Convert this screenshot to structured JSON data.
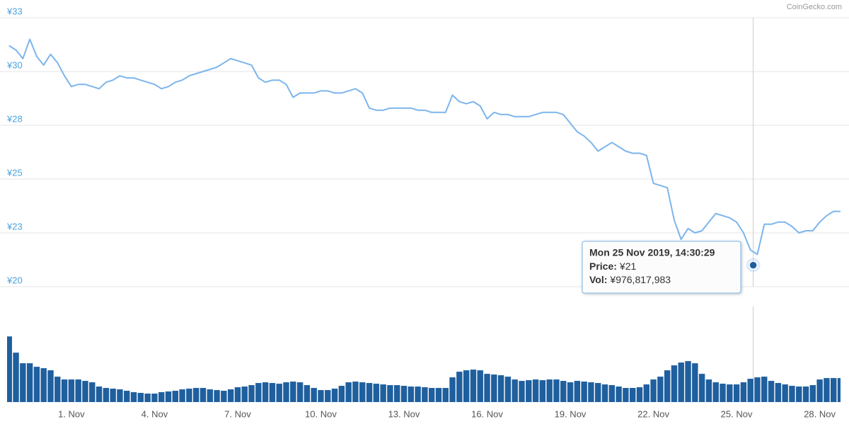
{
  "chart_data": [
    {
      "type": "line",
      "color": "#7cb5ec",
      "x": [
        -1.25,
        -1,
        -0.75,
        -0.5,
        -0.25,
        0,
        0.25,
        0.5,
        0.75,
        1,
        1.25,
        1.5,
        1.75,
        2,
        2.25,
        2.5,
        2.75,
        3,
        3.25,
        3.5,
        3.75,
        4,
        4.25,
        4.5,
        4.75,
        5,
        5.25,
        5.5,
        5.75,
        6,
        6.25,
        6.5,
        6.75,
        7,
        7.25,
        7.5,
        7.75,
        8,
        8.25,
        8.5,
        8.75,
        9,
        9.25,
        9.5,
        9.75,
        10,
        10.25,
        10.5,
        10.75,
        11,
        11.25,
        11.5,
        11.75,
        12,
        12.25,
        12.5,
        12.75,
        13,
        13.25,
        13.5,
        13.75,
        14,
        14.25,
        14.5,
        14.75,
        15,
        15.25,
        15.5,
        15.75,
        16,
        16.25,
        16.5,
        16.75,
        17,
        17.25,
        17.5,
        17.75,
        18,
        18.25,
        18.5,
        18.75,
        19,
        19.25,
        19.5,
        19.75,
        20,
        20.25,
        20.5,
        20.75,
        21,
        21.25,
        21.5,
        21.75,
        22,
        22.25,
        22.5,
        22.75,
        23,
        23.25,
        23.5,
        23.75,
        24,
        24.25,
        24.5,
        24.75,
        25,
        25.25,
        25.5,
        25.75,
        26,
        26.25,
        26.5,
        26.75,
        27,
        27.25,
        27.5,
        27.75,
        28,
        28.25,
        28.5,
        28.75
      ],
      "values": [
        31.2,
        31.0,
        30.6,
        31.5,
        30.7,
        30.3,
        30.8,
        30.4,
        29.8,
        29.3,
        29.4,
        29.4,
        29.3,
        29.2,
        29.5,
        29.6,
        29.8,
        29.7,
        29.7,
        29.6,
        29.5,
        29.4,
        29.2,
        29.3,
        29.5,
        29.6,
        29.8,
        29.9,
        30.0,
        30.1,
        30.2,
        30.4,
        30.6,
        30.5,
        30.4,
        30.3,
        29.7,
        29.5,
        29.6,
        29.6,
        29.4,
        28.8,
        29.0,
        29.0,
        29.0,
        29.1,
        29.1,
        29.0,
        29.0,
        29.1,
        29.2,
        29.0,
        28.3,
        28.2,
        28.2,
        28.3,
        28.3,
        28.3,
        28.3,
        28.2,
        28.2,
        28.1,
        28.1,
        28.1,
        28.9,
        28.6,
        28.5,
        28.6,
        28.4,
        27.8,
        28.1,
        28.0,
        28.0,
        27.9,
        27.9,
        27.9,
        28.0,
        28.1,
        28.1,
        28.1,
        28.0,
        27.6,
        27.2,
        27.0,
        26.7,
        26.3,
        26.5,
        26.7,
        26.5,
        26.3,
        26.2,
        26.2,
        26.1,
        24.8,
        24.7,
        24.6,
        23.1,
        22.2,
        22.7,
        22.5,
        22.6,
        23.0,
        23.4,
        23.3,
        23.2,
        23.0,
        22.5,
        21.7,
        21.5,
        22.9,
        22.9,
        23.0,
        23.0,
        22.8,
        22.5,
        22.6,
        22.6,
        23.0,
        23.3,
        23.5,
        23.5
      ],
      "xlim": [
        -1.32,
        28.75
      ],
      "ylim": [
        20,
        32.5
      ],
      "yticks": [
        {
          "value": 20,
          "label": "¥20"
        },
        {
          "value": 22.5,
          "label": "¥23"
        },
        {
          "value": 25,
          "label": "¥25"
        },
        {
          "value": 27.5,
          "label": "¥28"
        },
        {
          "value": 30,
          "label": "¥30"
        },
        {
          "value": 32.5,
          "label": "¥33"
        }
      ],
      "grid": true,
      "tooltip": {
        "title": "Mon 25 Nov 2019, 14:30:29",
        "x": 25.6,
        "price_label": "Price:",
        "price": {
          "value": 21,
          "label": "¥21"
        },
        "vol_label": "Vol:",
        "vol": {
          "value": 976817983,
          "label": "¥976,817,983"
        }
      }
    },
    {
      "type": "bar",
      "color": "#1f5f9e",
      "x": [
        -1.25,
        -1,
        -0.75,
        -0.5,
        -0.25,
        0,
        0.25,
        0.5,
        0.75,
        1,
        1.25,
        1.5,
        1.75,
        2,
        2.25,
        2.5,
        2.75,
        3,
        3.25,
        3.5,
        3.75,
        4,
        4.25,
        4.5,
        4.75,
        5,
        5.25,
        5.5,
        5.75,
        6,
        6.25,
        6.5,
        6.75,
        7,
        7.25,
        7.5,
        7.75,
        8,
        8.25,
        8.5,
        8.75,
        9,
        9.25,
        9.5,
        9.75,
        10,
        10.25,
        10.5,
        10.75,
        11,
        11.25,
        11.5,
        11.75,
        12,
        12.25,
        12.5,
        12.75,
        13,
        13.25,
        13.5,
        13.75,
        14,
        14.25,
        14.5,
        14.75,
        15,
        15.25,
        15.5,
        15.75,
        16,
        16.25,
        16.5,
        16.75,
        17,
        17.25,
        17.5,
        17.75,
        18,
        18.25,
        18.5,
        18.75,
        19,
        19.25,
        19.5,
        19.75,
        20,
        20.25,
        20.5,
        20.75,
        21,
        21.25,
        21.5,
        21.75,
        22,
        22.25,
        22.5,
        22.75,
        23,
        23.25,
        23.5,
        23.75,
        24,
        24.25,
        24.5,
        24.75,
        25,
        25.25,
        25.5,
        25.75,
        26,
        26.25,
        26.5,
        26.75,
        27,
        27.25,
        27.5,
        27.75,
        28,
        28.25,
        28.5,
        28.75
      ],
      "values": [
        3022500000,
        2275000000,
        1787500000,
        1787500000,
        1625000000,
        1560000000,
        1462500000,
        1170000000,
        1040000000,
        1040000000,
        1040000000,
        975000000,
        910000000,
        715000000,
        650000000,
        617500000,
        585000000,
        520000000,
        455000000,
        422500000,
        390000000,
        390000000,
        455000000,
        487500000,
        520000000,
        585000000,
        617500000,
        650000000,
        650000000,
        585000000,
        552500000,
        520000000,
        585000000,
        682500000,
        715000000,
        780000000,
        877500000,
        910000000,
        877500000,
        845000000,
        910000000,
        942500000,
        910000000,
        780000000,
        650000000,
        552500000,
        552500000,
        617500000,
        747500000,
        910000000,
        942500000,
        910000000,
        877500000,
        845000000,
        812500000,
        780000000,
        780000000,
        747500000,
        715000000,
        715000000,
        682500000,
        650000000,
        650000000,
        650000000,
        1137500000,
        1397500000,
        1462500000,
        1495000000,
        1462500000,
        1300000000,
        1267500000,
        1235000000,
        1170000000,
        1040000000,
        975000000,
        1007500000,
        1040000000,
        1007500000,
        1040000000,
        1040000000,
        975000000,
        910000000,
        975000000,
        942500000,
        910000000,
        877500000,
        812500000,
        780000000,
        715000000,
        650000000,
        650000000,
        682500000,
        812500000,
        1040000000,
        1170000000,
        1462500000,
        1690000000,
        1820000000,
        1885000000,
        1787500000,
        1300000000,
        1040000000,
        910000000,
        845000000,
        812500000,
        812500000,
        910000000,
        1072500000,
        1137500000,
        1170000000,
        975000000,
        877500000,
        812500000,
        747500000,
        715000000,
        715000000,
        780000000,
        1040000000,
        1105000000,
        1105000000,
        1105000000
      ],
      "xlim": [
        -1.32,
        28.75
      ],
      "ylim": [
        0,
        4400000000
      ],
      "xticks": [
        {
          "value": 1,
          "label": "1. Nov"
        },
        {
          "value": 4,
          "label": "4. Nov"
        },
        {
          "value": 7,
          "label": "7. Nov"
        },
        {
          "value": 10,
          "label": "10. Nov"
        },
        {
          "value": 13,
          "label": "13. Nov"
        },
        {
          "value": 16,
          "label": "16. Nov"
        },
        {
          "value": 19,
          "label": "19. Nov"
        },
        {
          "value": 22,
          "label": "22. Nov"
        },
        {
          "value": 25,
          "label": "25. Nov"
        },
        {
          "value": 28,
          "label": "28. Nov"
        }
      ]
    }
  ],
  "credit": "CoinGecko.com"
}
